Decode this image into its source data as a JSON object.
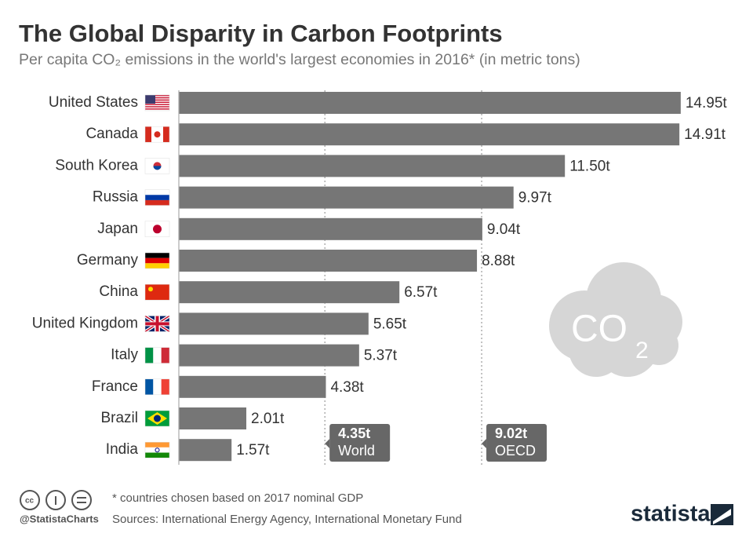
{
  "chart_data": {
    "type": "bar",
    "orientation": "horizontal",
    "title": "The Global Disparity in Carbon Footprints",
    "subtitle": "Per capita CO₂ emissions in the world's largest economies in 2016* (in metric tons)",
    "categories": [
      "United States",
      "Canada",
      "South Korea",
      "Russia",
      "Japan",
      "Germany",
      "China",
      "United Kingdom",
      "Italy",
      "France",
      "Brazil",
      "India"
    ],
    "values": [
      14.95,
      14.91,
      11.5,
      9.97,
      9.04,
      8.88,
      6.57,
      5.65,
      5.37,
      4.38,
      2.01,
      1.57
    ],
    "value_labels": [
      "14.95t",
      "14.91t",
      "11.50t",
      "9.97t",
      "9.04t",
      "8.88t",
      "6.57t",
      "5.65t",
      "5.37t",
      "4.38t",
      "2.01t",
      "1.57t"
    ],
    "color": "#767676",
    "xlim": [
      0,
      15
    ],
    "reference_lines": [
      {
        "value": 4.35,
        "value_label": "4.35t",
        "label": "World"
      },
      {
        "value": 9.02,
        "value_label": "9.02t",
        "label": "OECD"
      }
    ],
    "icon_text": "CO",
    "icon_subscript": "2",
    "note": "* countries chosen based on 2017 nominal GDP",
    "source": "Sources: International Energy Agency, International Monetary Fund",
    "credit": "@StatistaCharts",
    "brand": "statista"
  }
}
